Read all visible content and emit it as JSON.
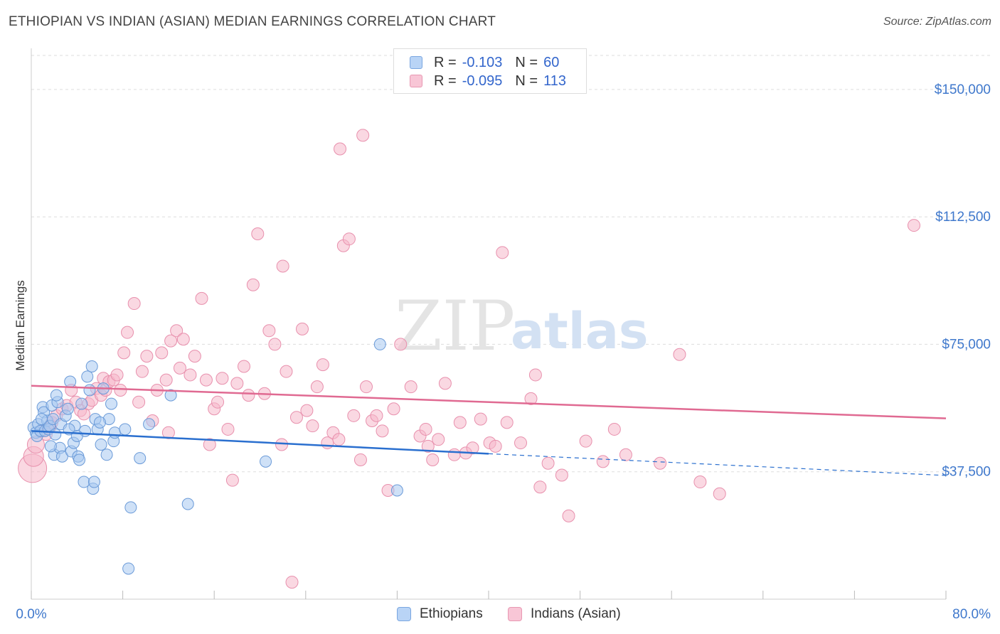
{
  "title": "ETHIOPIAN VS INDIAN (ASIAN) MEDIAN EARNINGS CORRELATION CHART",
  "source": "Source: ZipAtlas.com",
  "watermark": {
    "part1": "ZIP",
    "part2": "atlas"
  },
  "legend": {
    "rows": [
      {
        "r_label": "R =",
        "r_value": "-0.103",
        "n_label": "N =",
        "n_value": "60"
      },
      {
        "r_label": "R =",
        "r_value": "-0.095",
        "n_label": "N =",
        "n_value": "113"
      }
    ]
  },
  "bottom_legend": {
    "ethiopians": "Ethiopians",
    "indians": "Indians (Asian)"
  },
  "colors": {
    "blue_fill": "#a8c8f0",
    "blue_stroke": "#6a9ad8",
    "blue_line": "#2a6fcf",
    "pink_fill": "#f6b8cb",
    "pink_stroke": "#e890ad",
    "pink_line": "#e06a92",
    "tick_label": "#3f78cc",
    "grid": "#dddddd"
  },
  "chart_data": {
    "type": "scatter",
    "title": "ETHIOPIAN VS INDIAN (ASIAN) MEDIAN EARNINGS CORRELATION CHART",
    "xlabel": "",
    "ylabel": "Median Earnings",
    "xlim": [
      0,
      80
    ],
    "ylim": [
      0,
      160000
    ],
    "x_tick_labels": [
      "0.0%",
      "80.0%"
    ],
    "y_ticks": [
      37500,
      75000,
      112500,
      150000
    ],
    "y_tick_labels": [
      "$37,500",
      "$75,000",
      "$112,500",
      "$150,000"
    ],
    "grid": true,
    "legend_position": "top-center",
    "series": [
      {
        "name": "Ethiopians",
        "R": -0.103,
        "N": 60,
        "trend": {
          "x0": 0,
          "y0": 49500,
          "x1": 40,
          "y1": 42800,
          "dashed_to_x": 80,
          "dashed_to_y": 36400
        },
        "points": [
          [
            0.2,
            50500
          ],
          [
            0.4,
            49000
          ],
          [
            0.5,
            48000
          ],
          [
            0.6,
            51500
          ],
          [
            0.8,
            49500
          ],
          [
            1.0,
            56500
          ],
          [
            1.1,
            55000
          ],
          [
            1.2,
            49500
          ],
          [
            1.4,
            52500
          ],
          [
            1.5,
            50000
          ],
          [
            1.6,
            51000
          ],
          [
            1.8,
            57000
          ],
          [
            1.9,
            53000
          ],
          [
            2.0,
            42500
          ],
          [
            2.1,
            48500
          ],
          [
            2.3,
            58000
          ],
          [
            2.5,
            44500
          ],
          [
            2.6,
            51500
          ],
          [
            2.7,
            42000
          ],
          [
            3.0,
            54000
          ],
          [
            3.2,
            56000
          ],
          [
            3.4,
            64000
          ],
          [
            3.5,
            43500
          ],
          [
            3.7,
            46000
          ],
          [
            3.8,
            51000
          ],
          [
            4.1,
            42000
          ],
          [
            4.2,
            41000
          ],
          [
            4.4,
            57500
          ],
          [
            4.6,
            34500
          ],
          [
            4.7,
            49500
          ],
          [
            4.9,
            65500
          ],
          [
            5.1,
            61500
          ],
          [
            5.3,
            68500
          ],
          [
            5.4,
            32500
          ],
          [
            5.5,
            34500
          ],
          [
            5.6,
            53000
          ],
          [
            5.8,
            50000
          ],
          [
            6.1,
            45500
          ],
          [
            6.3,
            62000
          ],
          [
            6.6,
            42500
          ],
          [
            6.8,
            53000
          ],
          [
            7.0,
            57500
          ],
          [
            7.2,
            46500
          ],
          [
            7.3,
            49000
          ],
          [
            8.2,
            50000
          ],
          [
            8.7,
            27000
          ],
          [
            9.5,
            41500
          ],
          [
            10.3,
            51500
          ],
          [
            12.2,
            60000
          ],
          [
            13.7,
            28000
          ],
          [
            20.5,
            40500
          ],
          [
            30.5,
            75000
          ],
          [
            32.0,
            32000
          ],
          [
            8.5,
            9000
          ],
          [
            1.7,
            45000
          ],
          [
            0.9,
            53000
          ],
          [
            3.3,
            50000
          ],
          [
            2.2,
            60000
          ],
          [
            4.0,
            48000
          ],
          [
            6.0,
            52000
          ]
        ]
      },
      {
        "name": "Indians (Asian)",
        "R": -0.095,
        "N": 113,
        "trend": {
          "x0": 0,
          "y0": 62800,
          "x1": 80,
          "y1": 53200
        },
        "points": [
          [
            0.1,
            38500
          ],
          [
            0.2,
            42000
          ],
          [
            0.4,
            45500
          ],
          [
            0.9,
            49500
          ],
          [
            1.3,
            48500
          ],
          [
            1.6,
            50500
          ],
          [
            1.8,
            52000
          ],
          [
            2.2,
            54000
          ],
          [
            2.7,
            56000
          ],
          [
            3.1,
            57000
          ],
          [
            3.5,
            61500
          ],
          [
            3.9,
            58000
          ],
          [
            4.3,
            55500
          ],
          [
            4.6,
            54500
          ],
          [
            5.0,
            57500
          ],
          [
            5.3,
            58500
          ],
          [
            5.7,
            62000
          ],
          [
            6.1,
            60000
          ],
          [
            6.3,
            65000
          ],
          [
            6.5,
            61500
          ],
          [
            6.8,
            64000
          ],
          [
            7.2,
            64500
          ],
          [
            7.5,
            66000
          ],
          [
            7.8,
            61500
          ],
          [
            8.1,
            72500
          ],
          [
            8.4,
            78500
          ],
          [
            9.0,
            87000
          ],
          [
            9.4,
            58000
          ],
          [
            9.7,
            67000
          ],
          [
            10.1,
            71500
          ],
          [
            10.6,
            52500
          ],
          [
            11.0,
            61500
          ],
          [
            11.4,
            72500
          ],
          [
            11.8,
            64500
          ],
          [
            12.2,
            76000
          ],
          [
            12.7,
            79000
          ],
          [
            13.0,
            68000
          ],
          [
            13.3,
            76500
          ],
          [
            13.9,
            66000
          ],
          [
            14.3,
            71500
          ],
          [
            14.9,
            88500
          ],
          [
            15.3,
            64500
          ],
          [
            15.6,
            45500
          ],
          [
            16.0,
            56000
          ],
          [
            16.3,
            58000
          ],
          [
            16.7,
            65000
          ],
          [
            17.2,
            50000
          ],
          [
            17.6,
            35000
          ],
          [
            18.0,
            63500
          ],
          [
            18.6,
            68500
          ],
          [
            19.0,
            60000
          ],
          [
            19.4,
            92500
          ],
          [
            19.8,
            107500
          ],
          [
            20.4,
            60500
          ],
          [
            20.8,
            79000
          ],
          [
            21.3,
            75000
          ],
          [
            21.9,
            45500
          ],
          [
            22.3,
            67000
          ],
          [
            22.8,
            5000
          ],
          [
            23.2,
            53500
          ],
          [
            23.7,
            79500
          ],
          [
            24.1,
            55500
          ],
          [
            24.6,
            51000
          ],
          [
            25.0,
            62500
          ],
          [
            25.5,
            69000
          ],
          [
            25.9,
            46000
          ],
          [
            26.4,
            49000
          ],
          [
            26.9,
            47000
          ],
          [
            27.3,
            104000
          ],
          [
            27.8,
            106000
          ],
          [
            28.2,
            54000
          ],
          [
            28.8,
            41000
          ],
          [
            29.3,
            62500
          ],
          [
            29.8,
            52500
          ],
          [
            30.2,
            54000
          ],
          [
            30.7,
            49500
          ],
          [
            31.2,
            32000
          ],
          [
            31.7,
            56000
          ],
          [
            32.3,
            75000
          ],
          [
            33.2,
            62500
          ],
          [
            34.0,
            48000
          ],
          [
            34.7,
            45000
          ],
          [
            35.1,
            41000
          ],
          [
            35.6,
            47000
          ],
          [
            36.2,
            63500
          ],
          [
            37.0,
            42500
          ],
          [
            37.5,
            52000
          ],
          [
            38.0,
            43000
          ],
          [
            38.6,
            44500
          ],
          [
            39.3,
            53000
          ],
          [
            40.1,
            46000
          ],
          [
            40.6,
            45000
          ],
          [
            41.2,
            102000
          ],
          [
            41.6,
            52000
          ],
          [
            42.8,
            46000
          ],
          [
            43.7,
            59000
          ],
          [
            44.1,
            66000
          ],
          [
            45.2,
            40000
          ],
          [
            46.4,
            36500
          ],
          [
            47.0,
            24500
          ],
          [
            48.5,
            46500
          ],
          [
            50.0,
            40500
          ],
          [
            51.0,
            50000
          ],
          [
            55.0,
            40000
          ],
          [
            56.7,
            72000
          ],
          [
            58.5,
            34500
          ],
          [
            60.2,
            31000
          ],
          [
            77.2,
            110000
          ],
          [
            22.0,
            98000
          ],
          [
            29.0,
            136500
          ],
          [
            27.0,
            132500
          ],
          [
            34.5,
            50000
          ],
          [
            12.0,
            49000
          ],
          [
            44.5,
            33000
          ],
          [
            52.0,
            42500
          ]
        ]
      }
    ]
  }
}
